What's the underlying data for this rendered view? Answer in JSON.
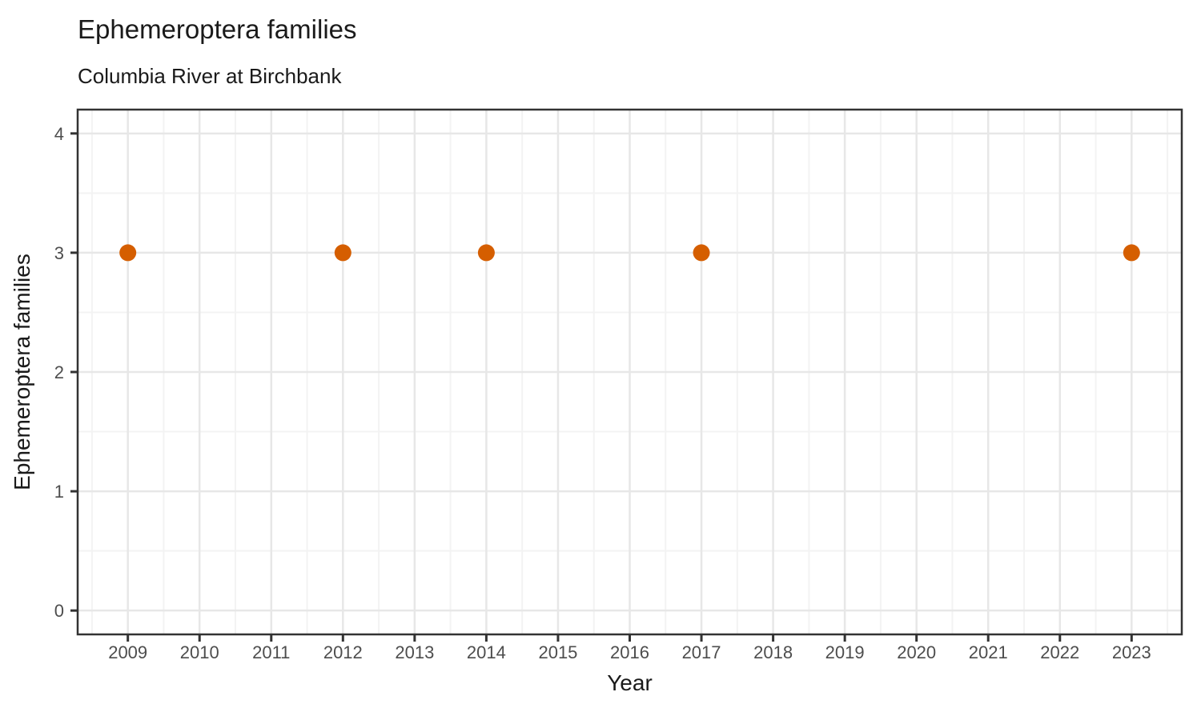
{
  "figure": {
    "title": "Ephemeroptera families",
    "subtitle": "Columbia River at Birchbank"
  },
  "chart_data": {
    "type": "scatter",
    "title": "Ephemeroptera families",
    "subtitle": "Columbia River at Birchbank",
    "xlabel": "Year",
    "ylabel": "Ephemeroptera families",
    "x": [
      2009,
      2012,
      2014,
      2017,
      2023
    ],
    "y": [
      3,
      3,
      3,
      3,
      3
    ],
    "xlim": [
      2008.3,
      2023.7
    ],
    "ylim": [
      -0.2,
      4.2
    ],
    "x_ticks": [
      2009,
      2010,
      2011,
      2012,
      2013,
      2014,
      2015,
      2016,
      2017,
      2018,
      2019,
      2020,
      2021,
      2022,
      2023
    ],
    "y_ticks": [
      0,
      1,
      2,
      3,
      4
    ],
    "grid": {
      "major": true,
      "minor": true
    },
    "legend": "none",
    "style": {
      "point_color": "#D55E00",
      "point_radius": 10.5,
      "panel_background": "#FFFFFF",
      "panel_border": "#333333",
      "grid_major_color": "#E7E7E7",
      "grid_minor_color": "#F3F3F3",
      "tick_color": "#333333",
      "tick_label_color": "#4D4D4D",
      "title_color": "#1A1A1A"
    }
  }
}
